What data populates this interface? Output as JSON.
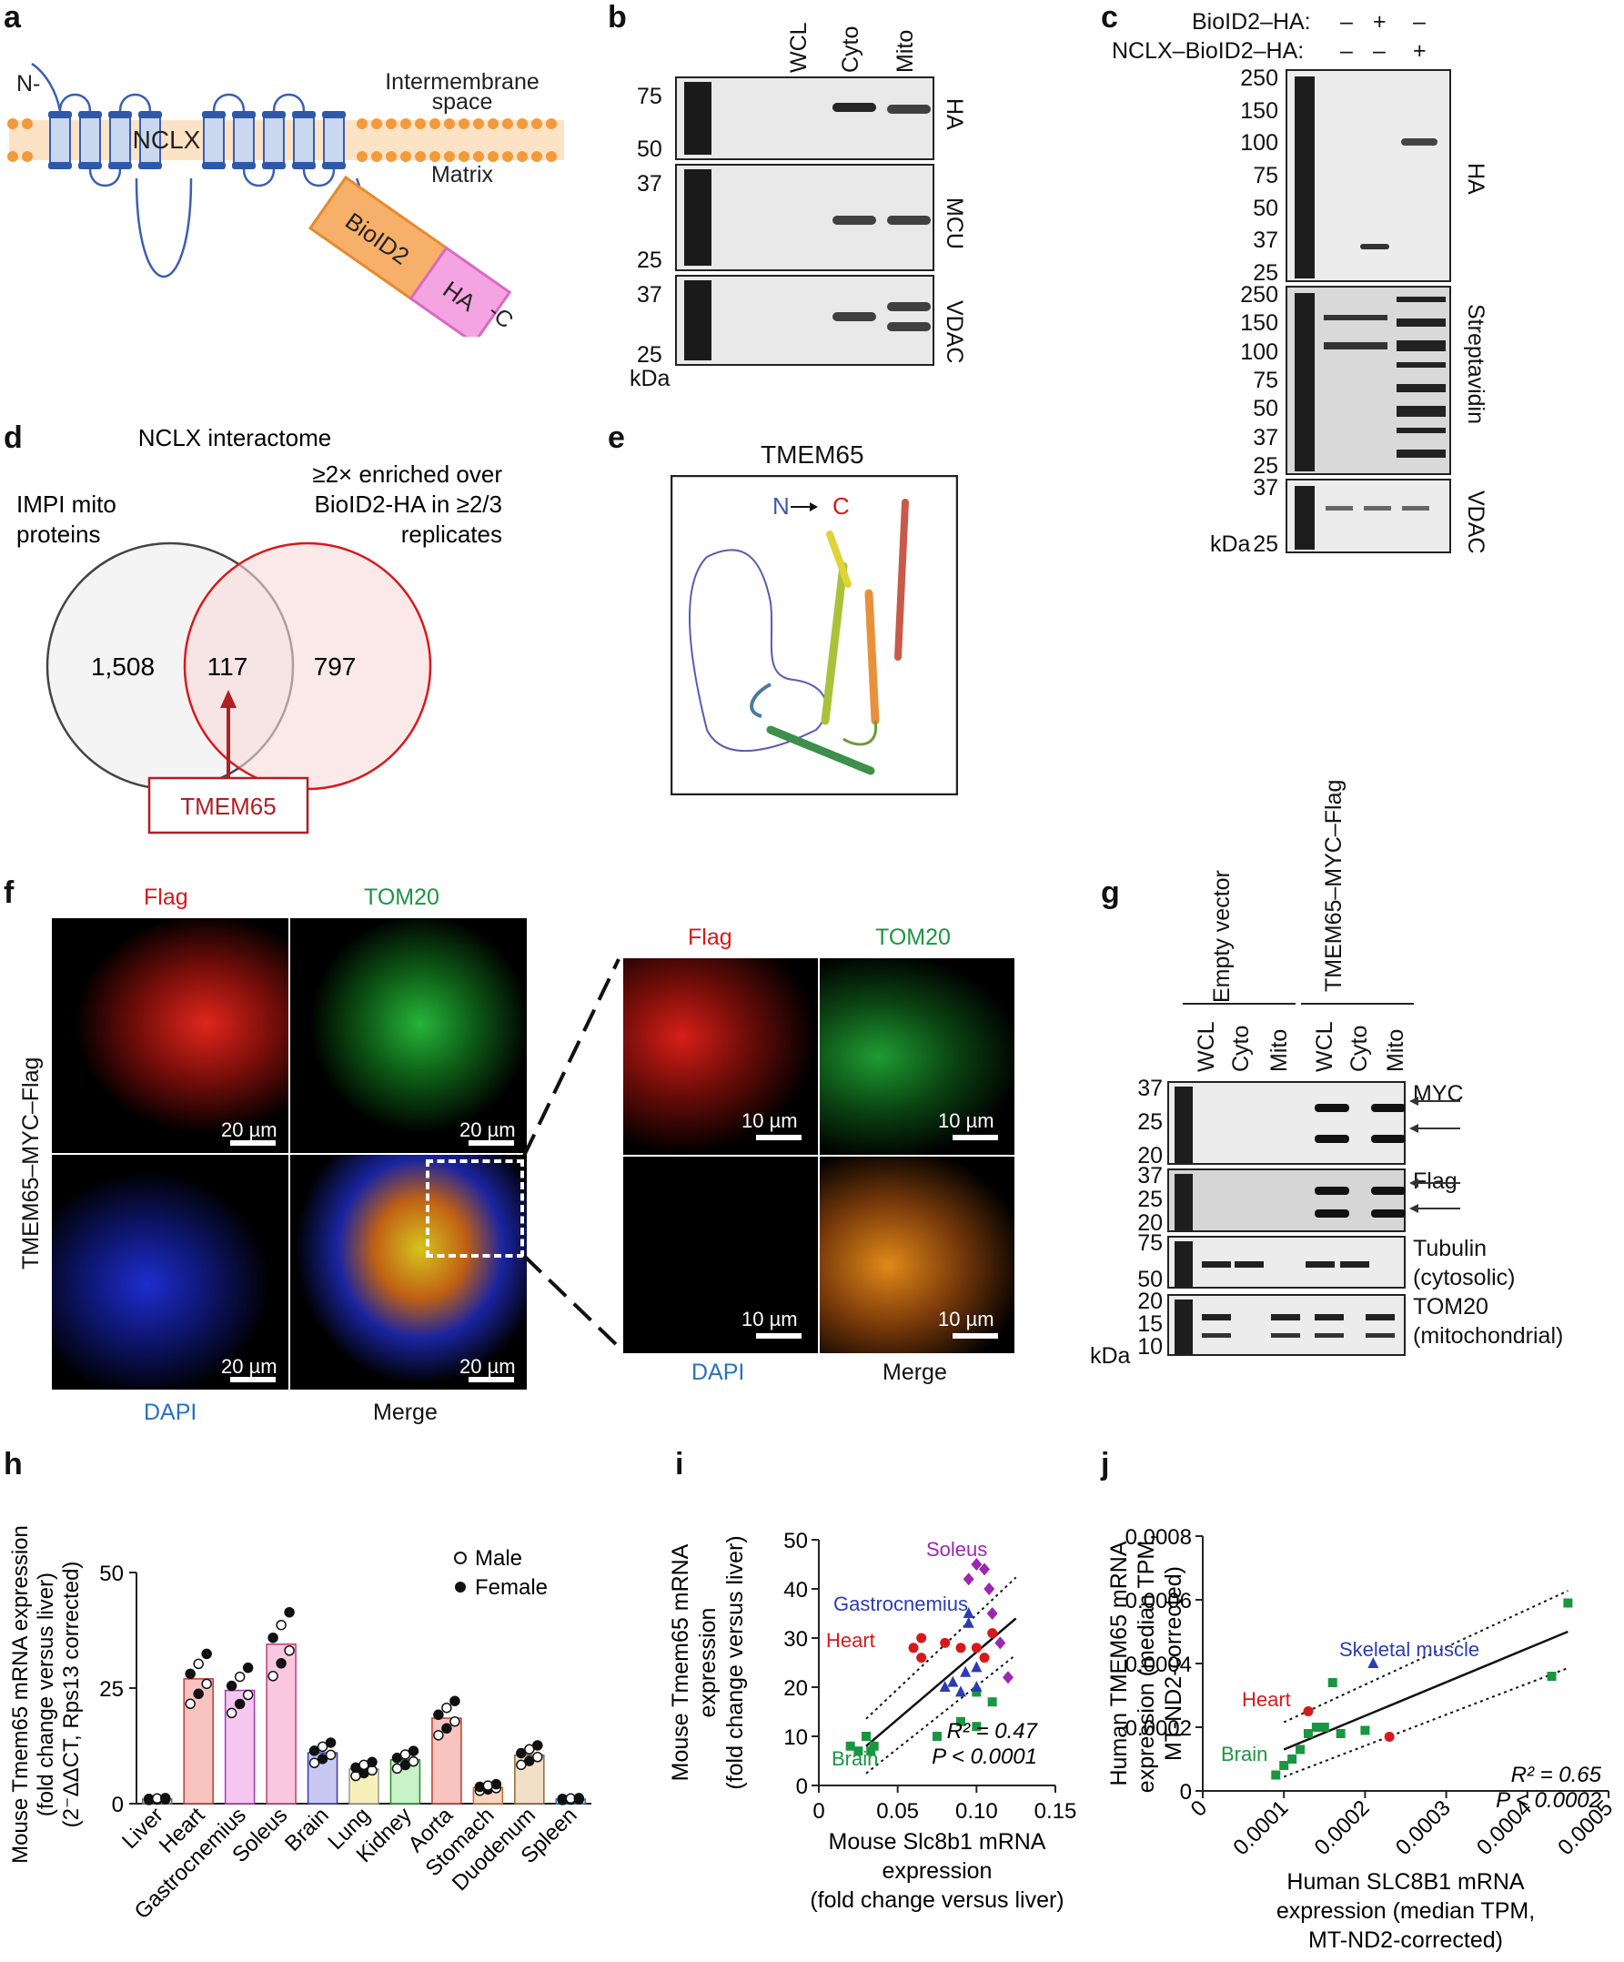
{
  "panels": [
    "a",
    "b",
    "c",
    "d",
    "e",
    "f",
    "g",
    "h",
    "i",
    "j"
  ],
  "a": {
    "n_label": "N-",
    "c_label": "-C",
    "ims_label": "Intermembrane\nspace",
    "matrix_label": "Matrix",
    "nclx": "NCLX",
    "bioid2": "BioID2",
    "ha": "HA"
  },
  "b": {
    "lanes": [
      "WCL",
      "Cyto",
      "Mito"
    ],
    "blots": [
      "HA",
      "MCU",
      "VDAC"
    ],
    "mw": [
      [
        "75",
        "50"
      ],
      [
        "37",
        "25"
      ],
      [
        "37",
        "25"
      ]
    ],
    "kda": "kDa"
  },
  "c": {
    "row1_label": "BioID2–HA:",
    "row1_signs": [
      "–",
      "+",
      "–"
    ],
    "row2_label": "NCLX–BioID2–HA:",
    "row2_signs": [
      "–",
      "–",
      "+"
    ],
    "blots": [
      "HA",
      "Streptavidin",
      "VDAC"
    ],
    "mw1": [
      "250",
      "150",
      "100",
      "75",
      "50",
      "37",
      "25"
    ],
    "mw2": [
      "250",
      "150",
      "100",
      "75",
      "50",
      "37",
      "25"
    ],
    "mw3": [
      "37",
      "25"
    ],
    "kda": "kDa"
  },
  "d": {
    "title": "NCLX interactome",
    "left_label": "IMPI mito\nproteins",
    "right_label": "≥2× enriched over\nBioID2-HA in ≥2/3\nreplicates",
    "left_n": "1,508",
    "mid_n": "117",
    "right_n": "797",
    "callout": "TMEM65"
  },
  "e": {
    "title": "TMEM65",
    "n": "N",
    "c": "C"
  },
  "f": {
    "side_label": "TMEM65–MYC–Flag",
    "labels": [
      "Flag",
      "TOM20",
      "DAPI",
      "Merge"
    ],
    "scale_big": "20 µm",
    "scale_small": "10 µm"
  },
  "g": {
    "groups": [
      "Empty\nvector",
      "TMEM65–\nMYC–Flag"
    ],
    "lanes": [
      "WCL",
      "Cyto",
      "Mito",
      "WCL",
      "Cyto",
      "Mito"
    ],
    "blots": [
      "MYC",
      "Flag",
      "Tubulin\n(cytosolic)",
      "TOM20\n(mitochondrial)"
    ],
    "mw": [
      [
        "37",
        "25",
        "20"
      ],
      [
        "37",
        "25",
        "20"
      ],
      [
        "75",
        "50"
      ],
      [
        "20",
        "15",
        "10"
      ]
    ],
    "kda": "kDa"
  },
  "colors": {
    "red": "#d7191c",
    "green": "#1a9641",
    "blue": "#2c3cb4",
    "purple": "#9c27b0",
    "darkred": "#b01f24"
  },
  "chart_data": [
    {
      "type": "bar",
      "panel": "h",
      "categories": [
        "Liver",
        "Heart",
        "Gastrocnemius",
        "Soleus",
        "Brain",
        "Lung",
        "Kidney",
        "Aorta",
        "Stomach",
        "Duodenum",
        "Spleen"
      ],
      "values": [
        1,
        27,
        24.5,
        34.5,
        11,
        7.5,
        9.5,
        18.5,
        3.5,
        10.5,
        1
      ],
      "ylim": [
        0,
        50
      ],
      "yticks": [
        "0",
        "25",
        "50"
      ],
      "ylabel": "Mouse Tmem65 mRNA expression\n(fold change versus liver)\n(2⁻ΔΔCT, Rps13 corrected)",
      "legend": [
        "Male",
        "Female"
      ]
    },
    {
      "type": "scatter",
      "panel": "i",
      "xlim": [
        0,
        0.15
      ],
      "ylim": [
        0,
        50
      ],
      "xticks": [
        "0",
        "0.05",
        "0.10",
        "0.15"
      ],
      "yticks": [
        "0",
        "10",
        "20",
        "30",
        "40",
        "50"
      ],
      "xlabel": "Mouse Slc8b1 mRNA\nexpression\n(fold change versus liver)",
      "ylabel": "Mouse Tmem65 mRNA\nexpression\n(fold change versus liver)",
      "stats": [
        "R² = 0.47",
        "P < 0.0001"
      ],
      "series": [
        {
          "name": "Brain",
          "color": "#1a9641",
          "marker": "square",
          "points": [
            [
              0.02,
              8
            ],
            [
              0.025,
              7
            ],
            [
              0.03,
              10
            ],
            [
              0.033,
              7
            ],
            [
              0.035,
              8
            ],
            [
              0.075,
              10
            ],
            [
              0.09,
              13
            ],
            [
              0.1,
              19
            ],
            [
              0.11,
              17
            ],
            [
              0.1,
              12
            ]
          ]
        },
        {
          "name": "Heart",
          "color": "#d7191c",
          "marker": "circle",
          "points": [
            [
              0.06,
              28
            ],
            [
              0.065,
              26
            ],
            [
              0.065,
              30
            ],
            [
              0.08,
              29
            ],
            [
              0.09,
              28
            ],
            [
              0.1,
              28
            ],
            [
              0.105,
              26
            ],
            [
              0.11,
              31
            ]
          ]
        },
        {
          "name": "Gastrocnemius",
          "color": "#2c3cb4",
          "marker": "triangle",
          "points": [
            [
              0.08,
              20
            ],
            [
              0.085,
              21
            ],
            [
              0.09,
              19
            ],
            [
              0.093,
              23
            ],
            [
              0.095,
              33
            ],
            [
              0.1,
              24
            ],
            [
              0.1,
              20
            ],
            [
              0.095,
              35
            ]
          ]
        },
        {
          "name": "Soleus",
          "color": "#9c27b0",
          "marker": "diamond",
          "points": [
            [
              0.095,
              42
            ],
            [
              0.1,
              45
            ],
            [
              0.105,
              44
            ],
            [
              0.108,
              40
            ],
            [
              0.11,
              35
            ],
            [
              0.115,
              29
            ],
            [
              0.12,
              22
            ]
          ]
        }
      ],
      "fit": [
        [
          0.03,
          8
        ],
        [
          0.125,
          34
        ]
      ]
    },
    {
      "type": "scatter",
      "panel": "j",
      "xlim": [
        0,
        0.0005
      ],
      "ylim": [
        0,
        0.0008
      ],
      "xticks": [
        "0",
        "0.0001",
        "0.0002",
        "0.0003",
        "0.0004",
        "0.0005"
      ],
      "yticks": [
        "0",
        "0.0002",
        "0.0004",
        "0.0006",
        "0.0008"
      ],
      "xlabel": "Human SLC8B1 mRNA\nexpression (median TPM,\nMT-ND2-corrected)",
      "ylabel": "Human TMEM65 mRNA\nexpression (median TPM,\nMT-ND2-corrected)",
      "stats": [
        "R² = 0.65",
        "P < 0.0002"
      ],
      "series": [
        {
          "name": "Brain",
          "color": "#1a9641",
          "marker": "square",
          "points": [
            [
              9e-05,
              5e-05
            ],
            [
              0.0001,
              8e-05
            ],
            [
              0.00011,
              0.0001
            ],
            [
              0.00012,
              0.00013
            ],
            [
              0.00013,
              0.00018
            ],
            [
              0.00014,
              0.0002
            ],
            [
              0.00015,
              0.0002
            ],
            [
              0.00017,
              0.00018
            ],
            [
              0.0002,
              0.00019
            ],
            [
              0.00016,
              0.00034
            ],
            [
              0.00043,
              0.00036
            ],
            [
              0.00045,
              0.00059
            ]
          ]
        },
        {
          "name": "Heart",
          "color": "#d7191c",
          "marker": "circle",
          "points": [
            [
              0.00013,
              0.00025
            ],
            [
              0.00023,
              0.00017
            ]
          ]
        },
        {
          "name": "Skeletal muscle",
          "color": "#2c3cb4",
          "marker": "triangle",
          "points": [
            [
              0.00021,
              0.0004
            ]
          ]
        }
      ],
      "fit": [
        [
          0.0001,
          0.00013
        ],
        [
          0.00045,
          0.0005
        ]
      ]
    }
  ]
}
